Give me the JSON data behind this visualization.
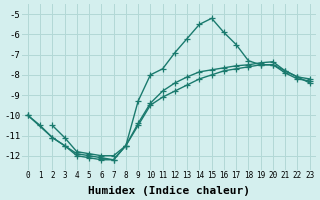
{
  "xlabel": "Humidex (Indice chaleur)",
  "bg_color": "#d4efee",
  "grid_color": "#b2d8d6",
  "line_color": "#1a7a6e",
  "xlim": [
    -0.5,
    23.5
  ],
  "ylim": [
    -12.7,
    -4.5
  ],
  "xticks": [
    0,
    1,
    2,
    3,
    4,
    5,
    6,
    7,
    8,
    9,
    10,
    11,
    12,
    13,
    14,
    15,
    16,
    17,
    18,
    19,
    20,
    21,
    22,
    23
  ],
  "yticks": [
    -5,
    -6,
    -7,
    -8,
    -9,
    -10,
    -11,
    -12
  ],
  "line1_x": [
    0,
    1,
    2,
    3,
    4,
    5,
    6,
    7,
    8,
    9,
    10,
    11,
    12,
    13,
    14,
    15,
    16,
    17,
    18,
    19,
    20,
    21,
    22,
    23
  ],
  "line1_y": [
    -10.0,
    -10.5,
    -11.1,
    -11.5,
    -12.0,
    -12.1,
    -12.2,
    -12.2,
    -11.5,
    -10.5,
    -9.5,
    -9.1,
    -8.8,
    -8.5,
    -8.2,
    -8.0,
    -7.8,
    -7.7,
    -7.6,
    -7.5,
    -7.5,
    -7.9,
    -8.2,
    -8.3
  ],
  "line2_x": [
    0,
    2,
    3,
    4,
    5,
    6,
    7,
    8,
    9,
    10,
    11,
    12,
    13,
    14,
    15,
    16,
    17,
    18,
    19,
    20,
    21,
    22,
    23
  ],
  "line2_y": [
    -10.0,
    -11.1,
    -11.5,
    -11.9,
    -12.0,
    -12.1,
    -12.2,
    -11.5,
    -10.4,
    -9.4,
    -8.8,
    -8.4,
    -8.1,
    -7.85,
    -7.75,
    -7.65,
    -7.55,
    -7.5,
    -7.4,
    -7.35,
    -7.8,
    -8.1,
    -8.2
  ],
  "line3_x": [
    2,
    3,
    4,
    5,
    6,
    7,
    8,
    9,
    10,
    11,
    12,
    13,
    14,
    15,
    16,
    17,
    18,
    19,
    20,
    21,
    22,
    23
  ],
  "line3_y": [
    -10.5,
    -11.1,
    -11.8,
    -11.9,
    -12.0,
    -12.0,
    -11.5,
    -9.3,
    -8.0,
    -7.7,
    -6.9,
    -6.2,
    -5.5,
    -5.2,
    -5.9,
    -6.5,
    -7.3,
    -7.5,
    -7.5,
    -7.8,
    -8.1,
    -8.4
  ],
  "marker_style": "+",
  "linewidth": 1.0,
  "markersize": 4,
  "xlabel_fontsize": 8
}
